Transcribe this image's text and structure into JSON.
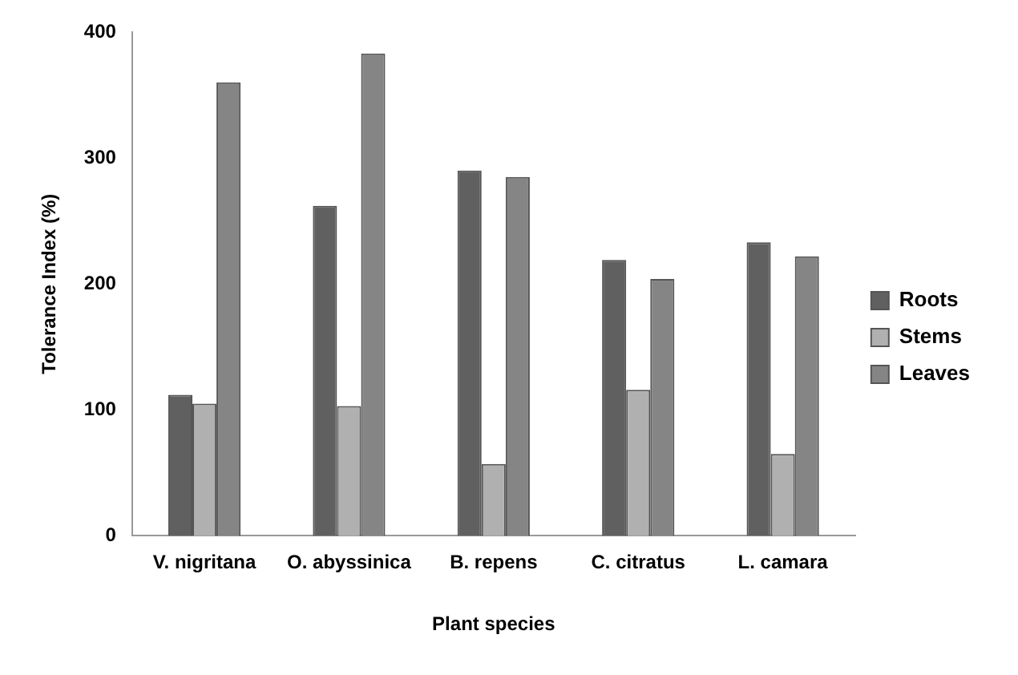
{
  "chart_data": {
    "type": "bar",
    "xlabel": "Plant species",
    "ylabel": "Tolerance Index (%)",
    "categories": [
      "V. nigritana",
      "O. abyssinica",
      "B. repens",
      "C. citratus",
      "L. camara"
    ],
    "series": [
      {
        "name": "Roots",
        "color": "#606060",
        "values": [
          112,
          262,
          290,
          219,
          233
        ]
      },
      {
        "name": "Stems",
        "color": "#b0b0b0",
        "values": [
          105,
          103,
          57,
          116,
          65
        ]
      },
      {
        "name": "Leaves",
        "color": "#858585",
        "values": [
          360,
          383,
          285,
          204,
          222
        ]
      }
    ],
    "ylim": [
      0,
      400
    ],
    "yticks": [
      0,
      100,
      200,
      300,
      400
    ],
    "grid": false,
    "legend": "right"
  }
}
